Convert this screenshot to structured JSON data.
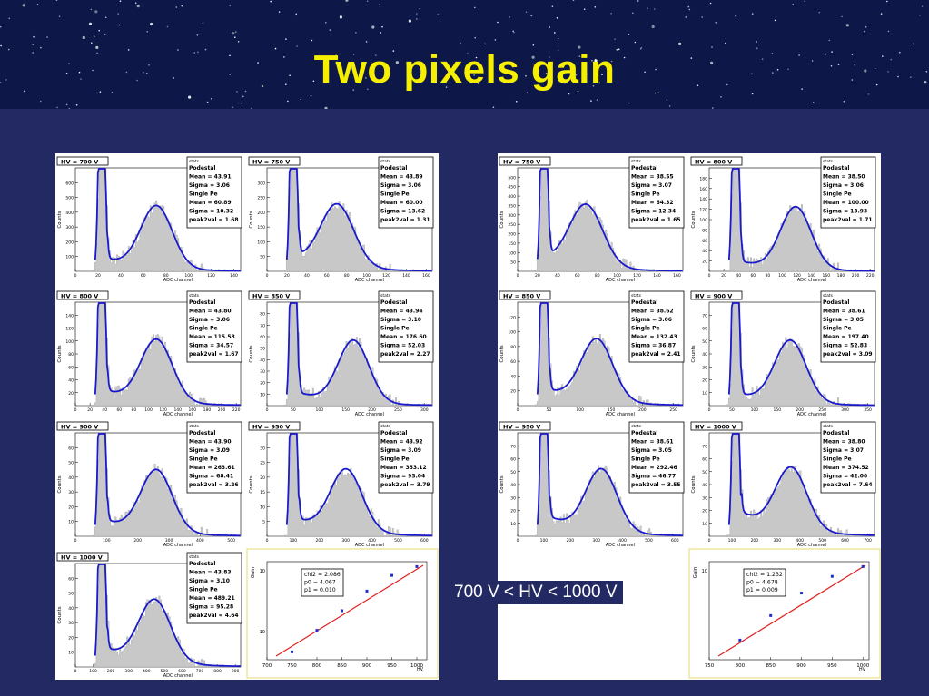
{
  "title": "Two pixels gain",
  "hv_range_label": "700 V < HV < 1000 V",
  "colors": {
    "fit": "#1a1acc",
    "hist": "#c8c8c8",
    "line": "#e02020",
    "points": "#2030d0",
    "title": "#f6f000"
  },
  "chart_data": [
    {
      "type": "histogram",
      "panel": "left",
      "label": "HV = 700 V",
      "stats": [
        "Podestal",
        "Mean =  43.91",
        "Sigma =   3.06",
        "Single Pe",
        "Mean =  60.89",
        "Sigma =  10.32",
        "peak2val =   1.68"
      ],
      "xticks": [
        "0",
        "20",
        "40",
        "60",
        "80",
        "100",
        "120",
        "140"
      ],
      "xlabel": "ADC channel",
      "ylabel": "Counts",
      "yticks": [
        "100",
        "200",
        "300",
        "400",
        "500",
        "600"
      ],
      "gain": 0.62,
      "valley": 0.38
    },
    {
      "type": "histogram",
      "panel": "left",
      "label": "HV = 750 V",
      "stats": [
        "Podestal",
        "Mean =  43.89",
        "Sigma =   3.06",
        "Single Pe",
        "Mean =  60.00",
        "Sigma =  13.62",
        "peak2val =   1.31"
      ],
      "xticks": [
        "0",
        "20",
        "40",
        "60",
        "80",
        "100",
        "120",
        "140",
        "160"
      ],
      "xlabel": "ADC channel",
      "ylabel": "Counts",
      "yticks": [
        "50",
        "100",
        "150",
        "200",
        "250",
        "300"
      ],
      "gain": 0.5,
      "valley": 0.42
    },
    {
      "type": "histogram",
      "panel": "left",
      "label": "HV = 800 V",
      "stats": [
        "Podestal",
        "Mean =  43.80",
        "Sigma =   3.06",
        "Single Pe",
        "Mean = 115.58",
        "Sigma =  34.57",
        "peak2val =   1.67"
      ],
      "xticks": [
        "0",
        "20",
        "40",
        "60",
        "80",
        "100",
        "120",
        "140",
        "160",
        "180",
        "200",
        "220"
      ],
      "xlabel": "ADC channel",
      "ylabel": "Counts",
      "yticks": [
        "20",
        "40",
        "60",
        "80",
        "100",
        "120",
        "140"
      ],
      "gain": 0.62,
      "valley": 0.45
    },
    {
      "type": "histogram",
      "panel": "left",
      "label": "HV = 850 V",
      "stats": [
        "Podestal",
        "Mean =  43.94",
        "Sigma =   3.10",
        "Single Pe",
        "Mean = 176.60",
        "Sigma =  52.03",
        "peak2val =   2.27"
      ],
      "xticks": [
        "0",
        "50",
        "100",
        "150",
        "200",
        "250",
        "300"
      ],
      "xlabel": "ADC channel",
      "ylabel": "Counts",
      "yticks": [
        "10",
        "20",
        "30",
        "40",
        "50",
        "60",
        "70",
        "80"
      ],
      "gain": 0.68,
      "valley": 0.4
    },
    {
      "type": "histogram",
      "panel": "left",
      "label": "HV = 900 V",
      "stats": [
        "Podestal",
        "Mean =  43.90",
        "Sigma =   3.09",
        "Single Pe",
        "Mean = 263.61",
        "Sigma =  68.41",
        "peak2val =   3.26"
      ],
      "xticks": [
        "0",
        "100",
        "200",
        "300",
        "400",
        "500"
      ],
      "xlabel": "ADC channel",
      "ylabel": "Counts",
      "yticks": [
        "10",
        "20",
        "30",
        "40",
        "50",
        "60"
      ],
      "gain": 0.62,
      "valley": 0.48
    },
    {
      "type": "histogram",
      "panel": "left",
      "label": "HV = 950 V",
      "stats": [
        "Podestal",
        "Mean =  43.92",
        "Sigma =   3.09",
        "Single Pe",
        "Mean = 353.12",
        "Sigma =  93.04",
        "peak2val =   3.79"
      ],
      "xticks": [
        "0",
        "100",
        "200",
        "300",
        "400",
        "500",
        "600"
      ],
      "xlabel": "ADC channel",
      "ylabel": "Counts",
      "yticks": [
        "5",
        "10",
        "15",
        "20",
        "25",
        "30"
      ],
      "gain": 0.6,
      "valley": 0.52
    },
    {
      "type": "histogram",
      "panel": "left",
      "label": "HV = 1000 V",
      "stats": [
        "Podestal",
        "Mean =  43.83",
        "Sigma =   3.10",
        "Single Pe",
        "Mean = 489.21",
        "Sigma =  95.28",
        "peak2val =   4.64"
      ],
      "xticks": [
        "0",
        "100",
        "200",
        "300",
        "400",
        "500",
        "600",
        "700",
        "800",
        "900"
      ],
      "xlabel": "ADC channel",
      "ylabel": "Counts",
      "yticks": [
        "10",
        "20",
        "30",
        "40",
        "50",
        "60"
      ],
      "gain": 0.6,
      "valley": 0.55
    },
    {
      "type": "scatter",
      "panel": "left",
      "title": "gain vs HV",
      "stats": [
        "chi2 =   2.086",
        "p0 =   4.067",
        "p1 =   0.010"
      ],
      "xticks": [
        "700",
        "750",
        "800",
        "850",
        "900",
        "950",
        "1000"
      ],
      "xlabel": "HV",
      "ylabel": "Gain",
      "yticks": [
        "10",
        "10"
      ],
      "x": [
        750,
        800,
        850,
        900,
        950,
        1000
      ],
      "y": [
        0.08,
        0.3,
        0.5,
        0.7,
        0.86,
        0.95
      ],
      "xlim": [
        700,
        1020
      ]
    },
    {
      "type": "histogram",
      "panel": "right",
      "label": "HV = 750 V",
      "stats": [
        "Podestal",
        "Mean =  38.55",
        "Sigma =   3.07",
        "Single Pe",
        "Mean =  64.32",
        "Sigma =  12.34",
        "peak2val =   1.65"
      ],
      "xticks": [
        "0",
        "20",
        "40",
        "60",
        "80",
        "100",
        "120",
        "140",
        "160"
      ],
      "xlabel": "ADC channel",
      "ylabel": "Counts",
      "yticks": [
        "50",
        "100",
        "150",
        "200",
        "250",
        "300",
        "350",
        "400",
        "450",
        "500"
      ],
      "gain": 0.48,
      "valley": 0.38
    },
    {
      "type": "histogram",
      "panel": "right",
      "label": "HV = 800 V",
      "stats": [
        "Podestal",
        "Mean =  38.50",
        "Sigma =   3.06",
        "Single Pe",
        "Mean = 100.00",
        "Sigma =  13.93",
        "peak2val =   1.71"
      ],
      "xticks": [
        "0",
        "20",
        "40",
        "60",
        "80",
        "100",
        "120",
        "140",
        "160",
        "180",
        "200",
        "220"
      ],
      "xlabel": "ADC channel",
      "ylabel": "Counts",
      "yticks": [
        "20",
        "40",
        "60",
        "80",
        "100",
        "120",
        "140",
        "160",
        "180"
      ],
      "gain": 0.68,
      "valley": 0.3
    },
    {
      "type": "histogram",
      "panel": "right",
      "label": "HV = 850 V",
      "stats": [
        "Podestal",
        "Mean =  38.62",
        "Sigma =   3.06",
        "Single Pe",
        "Mean = 132.43",
        "Sigma =  36.87",
        "peak2val =   2.41"
      ],
      "xticks": [
        "0",
        "50",
        "100",
        "150",
        "200",
        "250"
      ],
      "xlabel": "ADC channel",
      "ylabel": "Counts",
      "yticks": [
        "20",
        "40",
        "60",
        "80",
        "100",
        "120"
      ],
      "gain": 0.6,
      "valley": 0.48
    },
    {
      "type": "histogram",
      "panel": "right",
      "label": "HV = 900 V",
      "stats": [
        "Podestal",
        "Mean =  38.61",
        "Sigma =   3.05",
        "Single Pe",
        "Mean = 197.40",
        "Sigma =  52.83",
        "peak2val =   3.09"
      ],
      "xticks": [
        "0",
        "50",
        "100",
        "150",
        "200",
        "250",
        "300",
        "350"
      ],
      "xlabel": "ADC channel",
      "ylabel": "Counts",
      "yticks": [
        "10",
        "20",
        "30",
        "40",
        "50",
        "60",
        "70"
      ],
      "gain": 0.62,
      "valley": 0.35
    },
    {
      "type": "histogram",
      "panel": "right",
      "label": "HV = 950 V",
      "stats": [
        "Podestal",
        "Mean =  38.61",
        "Sigma =   3.05",
        "Single Pe",
        "Mean = 292.46",
        "Sigma =  46.77",
        "peak2val =   3.55"
      ],
      "xticks": [
        "0",
        "100",
        "200",
        "300",
        "400",
        "500",
        "600"
      ],
      "xlabel": "ADC channel",
      "ylabel": "Counts",
      "yticks": [
        "10",
        "20",
        "30",
        "40",
        "50",
        "60",
        "70"
      ],
      "gain": 0.65,
      "valley": 0.6
    },
    {
      "type": "histogram",
      "panel": "right",
      "label": "HV = 1000 V",
      "stats": [
        "Podestal",
        "Mean =  38.80",
        "Sigma =   3.07",
        "Single Pe",
        "Mean = 374.52",
        "Sigma =  42.00",
        "peak2val =   7.64"
      ],
      "xticks": [
        "0",
        "100",
        "200",
        "300",
        "400",
        "500",
        "600",
        "700"
      ],
      "xlabel": "ADC channel",
      "ylabel": "Counts",
      "yticks": [
        "10",
        "20",
        "30",
        "40",
        "50",
        "60",
        "70"
      ],
      "gain": 0.63,
      "valley": 0.75
    },
    {
      "type": "scatter",
      "panel": "right",
      "title": "gain vs HV",
      "stats": [
        "chi2 =   1.232",
        "p0 =   4.678",
        "p1 =   0.009"
      ],
      "xticks": [
        "750",
        "800",
        "850",
        "900",
        "950",
        "1000"
      ],
      "xlabel": "HV",
      "ylabel": "Gain",
      "yticks": [
        "10"
      ],
      "x": [
        800,
        850,
        900,
        950,
        1000
      ],
      "y": [
        0.2,
        0.45,
        0.68,
        0.85,
        0.95
      ],
      "xlim": [
        750,
        1010
      ]
    }
  ]
}
